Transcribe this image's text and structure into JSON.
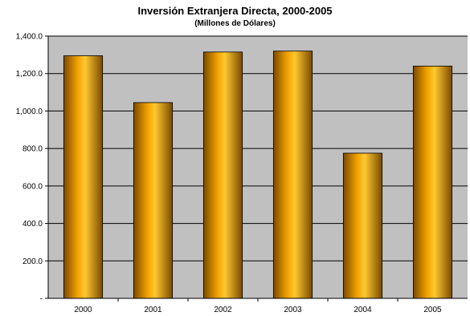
{
  "chart_data": {
    "type": "bar",
    "title": "Inversión Extranjera Directa, 2000-2005",
    "subtitle": "(Millones de Dólares)",
    "categories": [
      "2000",
      "2001",
      "2002",
      "2003",
      "2004",
      "2005"
    ],
    "values": [
      1295,
      1045,
      1315,
      1320,
      775,
      1240
    ],
    "ylim": [
      0,
      1400
    ],
    "yticks": [
      0,
      200,
      400,
      600,
      800,
      1000,
      1200,
      1400
    ],
    "ytick_labels": [
      "-",
      "200.0",
      "400.0",
      "600.0",
      "800.0",
      "1,000.0",
      "1,200.0",
      "1,400.0"
    ],
    "grid": true,
    "colors": {
      "plot_bg": "#c0c0c0",
      "bar_dark": "#7a4a00",
      "bar_mid": "#f0a000",
      "bar_light": "#ffc830",
      "grid": "#000000"
    }
  }
}
